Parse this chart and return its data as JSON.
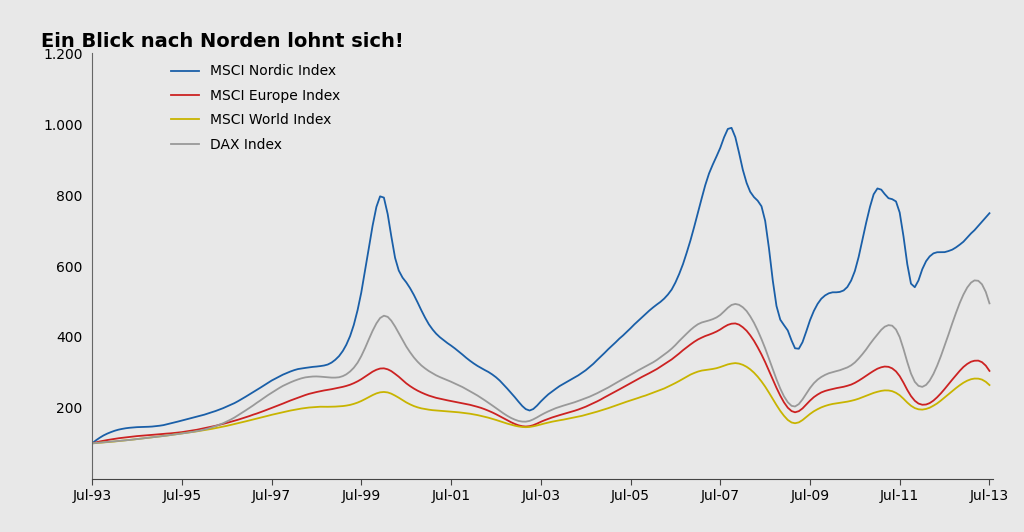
{
  "title": "Ein Blick nach Norden lohnt sich!",
  "background_color": "#e8e8e8",
  "plot_background_color": "#e8e8e8",
  "series": [
    {
      "label": "MSCI Nordic Index",
      "color": "#1a5fa8",
      "linewidth": 1.3
    },
    {
      "label": "MSCI Europe Index",
      "color": "#cc2222",
      "linewidth": 1.3
    },
    {
      "label": "MSCI World Index",
      "color": "#c8b400",
      "linewidth": 1.3
    },
    {
      "label": "DAX Index",
      "color": "#999999",
      "linewidth": 1.3
    }
  ],
  "ylim": [
    0,
    1200
  ],
  "yticks": [
    200,
    400,
    600,
    800,
    1000,
    1200
  ],
  "ytick_labels": [
    "200",
    "400",
    "600",
    "800",
    "1.000",
    "1.200"
  ],
  "xtick_years": [
    1993,
    1995,
    1997,
    1999,
    2001,
    2003,
    2005,
    2007,
    2009,
    2011,
    2013
  ],
  "xtick_labels": [
    "Jul-93",
    "Jul-95",
    "Jul-97",
    "Jul-99",
    "Jul-01",
    "Jul-03",
    "Jul-05",
    "Jul-07",
    "Jul-09",
    "Jul-11",
    "Jul-13"
  ],
  "title_fontsize": 14,
  "tick_fontsize": 10,
  "legend_fontsize": 10
}
